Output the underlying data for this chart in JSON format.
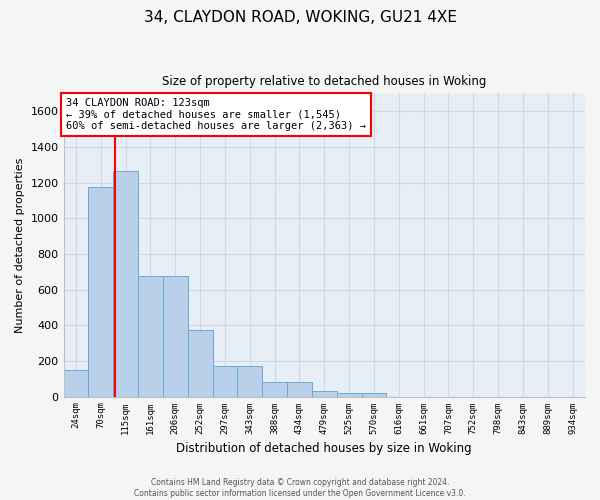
{
  "title1": "34, CLAYDON ROAD, WOKING, GU21 4XE",
  "title2": "Size of property relative to detached houses in Woking",
  "xlabel": "Distribution of detached houses by size in Woking",
  "ylabel": "Number of detached properties",
  "bar_color": "#b8d0ea",
  "bar_edge_color": "#6aaad4",
  "axes_bg_color": "#e8eef6",
  "grid_color": "#d0d8e8",
  "fig_bg_color": "#f5f5f5",
  "categories": [
    "24sqm",
    "70sqm",
    "115sqm",
    "161sqm",
    "206sqm",
    "252sqm",
    "297sqm",
    "343sqm",
    "388sqm",
    "434sqm",
    "479sqm",
    "525sqm",
    "570sqm",
    "616sqm",
    "661sqm",
    "707sqm",
    "752sqm",
    "798sqm",
    "843sqm",
    "889sqm",
    "934sqm"
  ],
  "values": [
    148,
    1175,
    1265,
    675,
    675,
    375,
    170,
    170,
    83,
    83,
    32,
    20,
    20,
    0,
    0,
    0,
    0,
    0,
    0,
    0,
    0
  ],
  "ylim": [
    0,
    1700
  ],
  "yticks": [
    0,
    200,
    400,
    600,
    800,
    1000,
    1200,
    1400,
    1600
  ],
  "property_label": "34 CLAYDON ROAD: 123sqm",
  "annotation_line1": "← 39% of detached houses are smaller (1,545)",
  "annotation_line2": "60% of semi-detached houses are larger (2,363) →",
  "vline_x": 1.57,
  "footer1": "Contains HM Land Registry data © Crown copyright and database right 2024.",
  "footer2": "Contains public sector information licensed under the Open Government Licence v3.0."
}
